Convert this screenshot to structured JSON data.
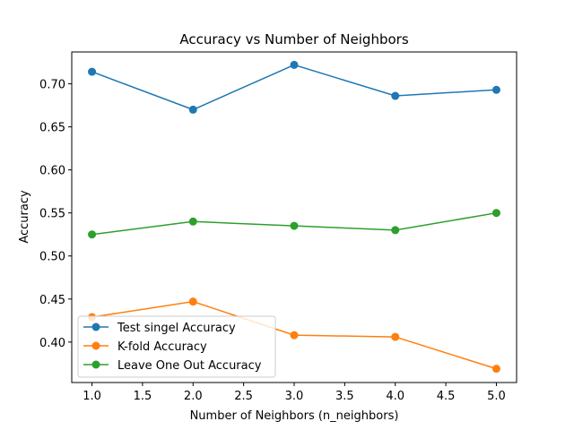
{
  "chart_data": {
    "type": "line",
    "title": "Accuracy vs Number of Neighbors",
    "xlabel": "Number of Neighbors (n_neighbors)",
    "ylabel": "Accuracy",
    "x": [
      1,
      2,
      3,
      4,
      5
    ],
    "xlim": [
      0.8,
      5.2
    ],
    "ylim": [
      0.353,
      0.737
    ],
    "xticks": [
      1.0,
      1.5,
      2.0,
      2.5,
      3.0,
      3.5,
      4.0,
      4.5,
      5.0
    ],
    "xtick_labels": [
      "1.0",
      "1.5",
      "2.0",
      "2.5",
      "3.0",
      "3.5",
      "4.0",
      "4.5",
      "5.0"
    ],
    "yticks": [
      0.4,
      0.45,
      0.5,
      0.55,
      0.6,
      0.65,
      0.7
    ],
    "ytick_labels": [
      "0.40",
      "0.45",
      "0.50",
      "0.55",
      "0.60",
      "0.65",
      "0.70"
    ],
    "grid": false,
    "legend_position": "lower-left",
    "series": [
      {
        "name": "Test singel Accuracy",
        "color": "#1f77b4",
        "values": [
          0.714,
          0.67,
          0.722,
          0.686,
          0.693
        ]
      },
      {
        "name": "K-fold Accuracy",
        "color": "#ff7f0e",
        "values": [
          0.429,
          0.447,
          0.408,
          0.406,
          0.369
        ]
      },
      {
        "name": "Leave One Out Accuracy",
        "color": "#2ca02c",
        "values": [
          0.525,
          0.54,
          0.535,
          0.53,
          0.55
        ]
      }
    ]
  }
}
